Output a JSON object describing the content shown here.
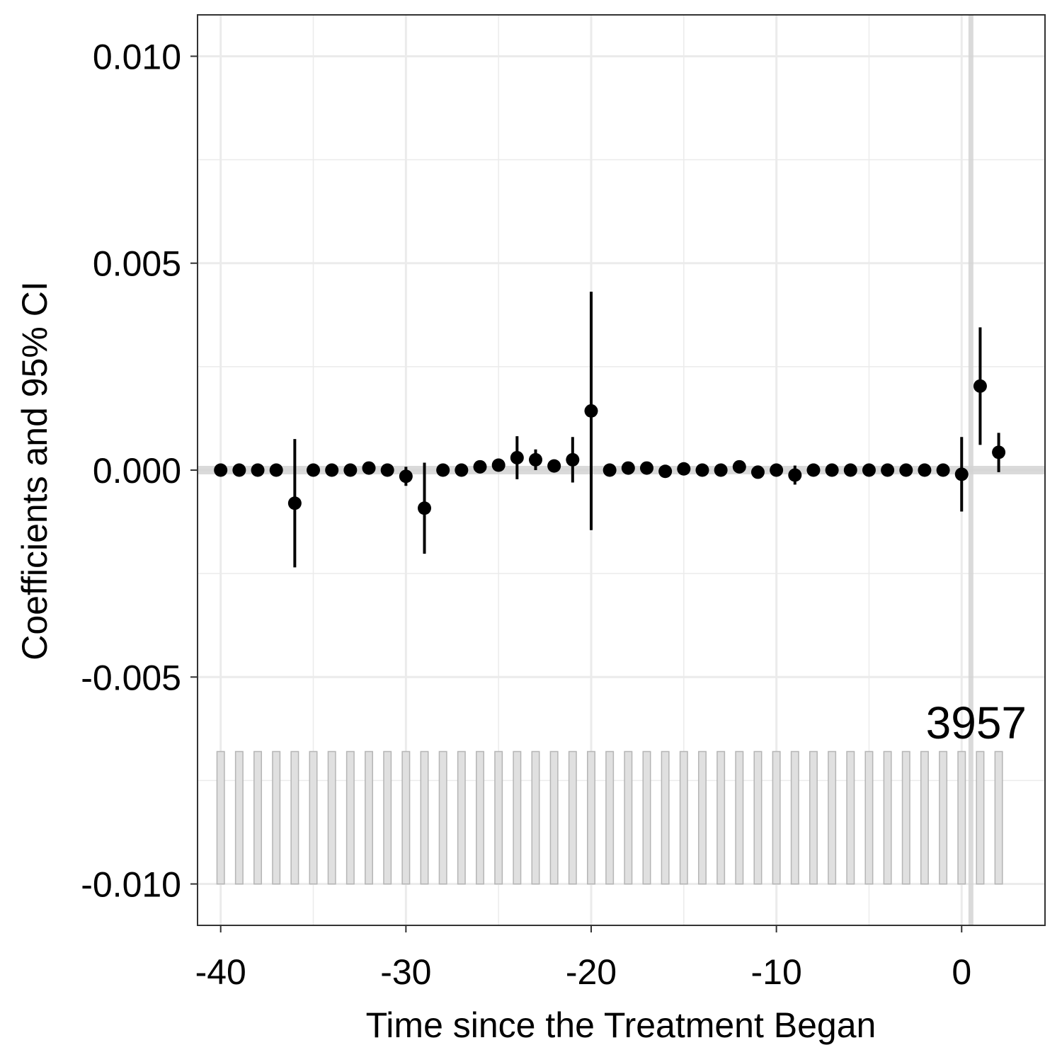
{
  "chart_data": {
    "type": "scatter",
    "title": "",
    "xlabel": "Time since the Treatment Began",
    "ylabel": "Coefficients and 95% CI",
    "xlim": [
      -41.25,
      4.5
    ],
    "ylim": [
      -0.011,
      0.011
    ],
    "x_ticks": [
      -40,
      -30,
      -20,
      -10,
      0
    ],
    "x_tick_labels": [
      "-40",
      "-30",
      "-20",
      "-10",
      "0"
    ],
    "y_ticks": [
      0.01,
      0.005,
      0.0,
      -0.005,
      -0.01
    ],
    "y_tick_labels": [
      "0.010",
      "0.005",
      "0.000",
      "-0.005",
      "-0.010"
    ],
    "grid": true,
    "theme": "black-and-white with light gray grid",
    "reference_lines": {
      "horizontal_y": 0.0,
      "vertical_x": 0.5
    },
    "count_label": "3957",
    "count_bars": {
      "y_bottom": -0.01,
      "y_top": -0.0068,
      "fill": "#e0e0e0",
      "stroke": "#b5b5b5"
    },
    "colors": {
      "points": "#000000",
      "reference_line": "#d3d3d3",
      "grid": "#ebebeb",
      "panel_border": "#333333"
    },
    "series": [
      {
        "points": [
          {
            "x": -40,
            "y": 0.0,
            "lo": 0.0,
            "hi": 0.0
          },
          {
            "x": -39,
            "y": 0.0,
            "lo": 0.0,
            "hi": 0.0
          },
          {
            "x": -38,
            "y": 0.0,
            "lo": 0.0,
            "hi": 0.0
          },
          {
            "x": -37,
            "y": 0.0,
            "lo": 0.0,
            "hi": 0.0
          },
          {
            "x": -36,
            "y": -0.0008,
            "lo": -0.00235,
            "hi": 0.00075
          },
          {
            "x": -35,
            "y": 0.0,
            "lo": 0.0,
            "hi": 0.0
          },
          {
            "x": -34,
            "y": 0.0,
            "lo": 0.0,
            "hi": 0.0
          },
          {
            "x": -33,
            "y": 0.0,
            "lo": 0.0,
            "hi": 0.0
          },
          {
            "x": -32,
            "y": 5e-05,
            "lo": 5e-05,
            "hi": 5e-05
          },
          {
            "x": -31,
            "y": 0.0,
            "lo": 0.0,
            "hi": 0.0
          },
          {
            "x": -30,
            "y": -0.00015,
            "lo": -0.00038,
            "hi": 8e-05
          },
          {
            "x": -29,
            "y": -0.00092,
            "lo": -0.00202,
            "hi": 0.00018
          },
          {
            "x": -28,
            "y": 0.0,
            "lo": 0.0,
            "hi": 0.0
          },
          {
            "x": -27,
            "y": 0.0,
            "lo": 0.0,
            "hi": 0.0
          },
          {
            "x": -26,
            "y": 8e-05,
            "lo": 8e-05,
            "hi": 8e-05
          },
          {
            "x": -25,
            "y": 0.00012,
            "lo": -2e-05,
            "hi": 0.00026
          },
          {
            "x": -24,
            "y": 0.0003,
            "lo": -0.00022,
            "hi": 0.00082
          },
          {
            "x": -23,
            "y": 0.00025,
            "lo": 0.0,
            "hi": 0.0005
          },
          {
            "x": -22,
            "y": 0.0001,
            "lo": 0.0,
            "hi": 0.0002
          },
          {
            "x": -21,
            "y": 0.00025,
            "lo": -0.0003,
            "hi": 0.0008
          },
          {
            "x": -20,
            "y": 0.00143,
            "lo": -0.00145,
            "hi": 0.00431
          },
          {
            "x": -19,
            "y": 0.0,
            "lo": 0.0,
            "hi": 0.0
          },
          {
            "x": -18,
            "y": 5e-05,
            "lo": 5e-05,
            "hi": 5e-05
          },
          {
            "x": -17,
            "y": 5e-05,
            "lo": 5e-05,
            "hi": 5e-05
          },
          {
            "x": -16,
            "y": -3e-05,
            "lo": -3e-05,
            "hi": -3e-05
          },
          {
            "x": -15,
            "y": 3e-05,
            "lo": 3e-05,
            "hi": 3e-05
          },
          {
            "x": -14,
            "y": 0.0,
            "lo": 0.0,
            "hi": 0.0
          },
          {
            "x": -13,
            "y": 0.0,
            "lo": 0.0,
            "hi": 0.0
          },
          {
            "x": -12,
            "y": 8e-05,
            "lo": 8e-05,
            "hi": 8e-05
          },
          {
            "x": -11,
            "y": -5e-05,
            "lo": -5e-05,
            "hi": -5e-05
          },
          {
            "x": -10,
            "y": 0.0,
            "lo": 0.0,
            "hi": 0.0
          },
          {
            "x": -9,
            "y": -0.00012,
            "lo": -0.00035,
            "hi": 0.00011
          },
          {
            "x": -8,
            "y": 0.0,
            "lo": 0.0,
            "hi": 0.0
          },
          {
            "x": -7,
            "y": 0.0,
            "lo": 0.0,
            "hi": 0.0
          },
          {
            "x": -6,
            "y": 0.0,
            "lo": 0.0,
            "hi": 0.0
          },
          {
            "x": -5,
            "y": 0.0,
            "lo": 0.0,
            "hi": 0.0
          },
          {
            "x": -4,
            "y": 0.0,
            "lo": 0.0,
            "hi": 0.0
          },
          {
            "x": -3,
            "y": 0.0,
            "lo": 0.0,
            "hi": 0.0
          },
          {
            "x": -2,
            "y": 0.0,
            "lo": 0.0,
            "hi": 0.0
          },
          {
            "x": -1,
            "y": 0.0,
            "lo": 0.0,
            "hi": 0.0
          },
          {
            "x": 0,
            "y": -0.0001,
            "lo": -0.001,
            "hi": 0.0008
          },
          {
            "x": 1,
            "y": 0.00203,
            "lo": 0.00061,
            "hi": 0.00345
          },
          {
            "x": 2,
            "y": 0.00043,
            "lo": -5e-05,
            "hi": 0.0009
          }
        ]
      }
    ]
  }
}
